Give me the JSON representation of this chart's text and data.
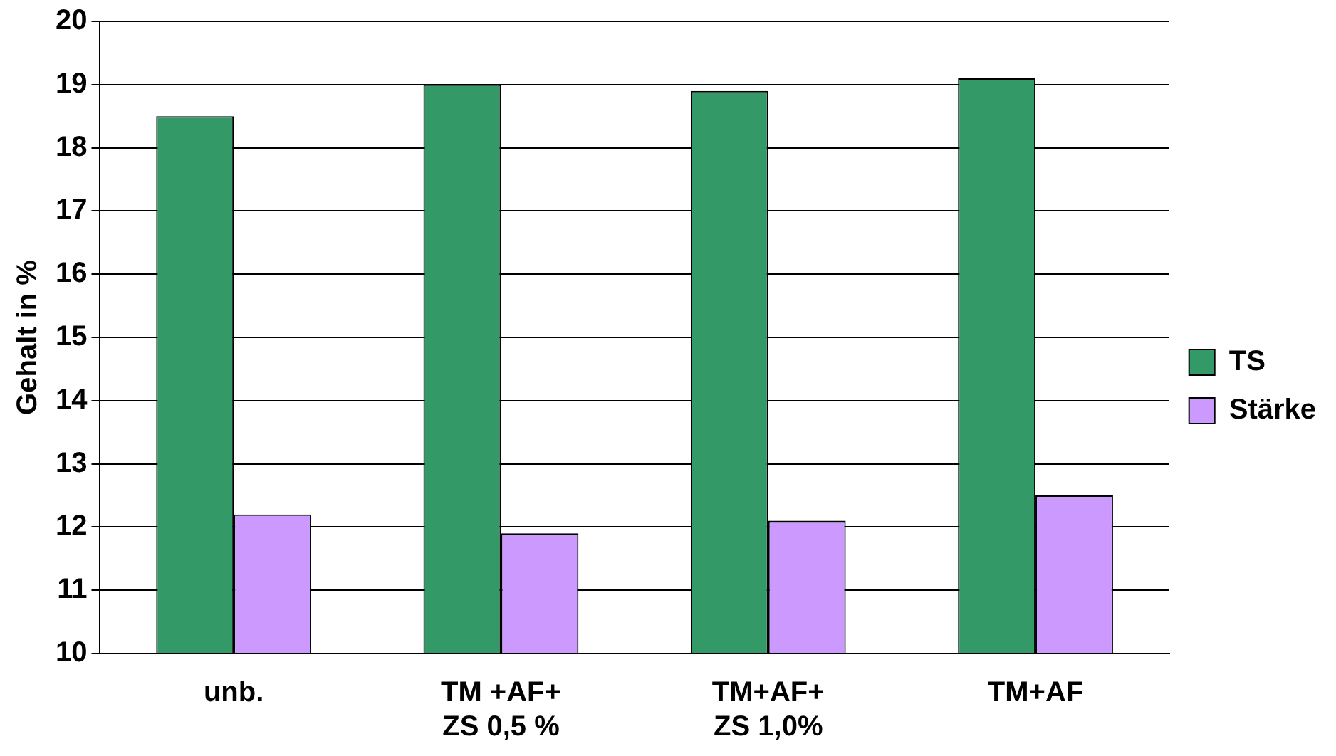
{
  "chart_data": {
    "type": "bar",
    "ylabel": "Gehalt in %",
    "categories": [
      "unb.",
      "TM +AF+\nZS 0,5 %",
      "TM+AF+\nZS 1,0%",
      "TM+AF"
    ],
    "series": [
      {
        "name": "TS",
        "color": "#339966",
        "values": [
          18.5,
          19.0,
          18.9,
          19.1
        ]
      },
      {
        "name": "Stärke",
        "color": "#cc99ff",
        "values": [
          12.2,
          11.9,
          12.1,
          12.5
        ]
      }
    ],
    "ylim": [
      10,
      20
    ],
    "yticks": [
      10,
      11,
      12,
      13,
      14,
      15,
      16,
      17,
      18,
      19,
      20
    ],
    "grid": "y",
    "legend": "right"
  }
}
